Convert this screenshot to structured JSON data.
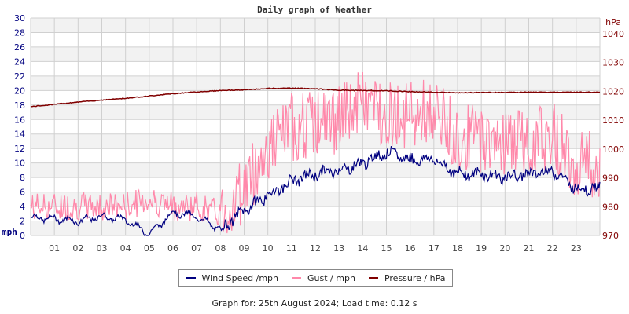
{
  "title": "Daily graph of Weather",
  "footer": "Graph for: 25th August 2024; Load time: 0.12 s",
  "colors": {
    "wind": "#000080",
    "gust": "#ff88aa",
    "pressure": "#800000",
    "left_axis": "#000080",
    "right_axis": "#800000",
    "grid": "#d0d0d0",
    "band": "#f2f2f2"
  },
  "legend": [
    {
      "label": "Wind Speed /mph",
      "color": "#000080"
    },
    {
      "label": "Gust / mph",
      "color": "#ff88aa"
    },
    {
      "label": "Pressure / hPa",
      "color": "#800000"
    }
  ],
  "chart_data": {
    "type": "line",
    "title": "Daily graph of Weather",
    "xlabel": "",
    "x_ticks": [
      "01",
      "02",
      "03",
      "04",
      "05",
      "06",
      "07",
      "08",
      "09",
      "10",
      "11",
      "12",
      "13",
      "14",
      "15",
      "16",
      "17",
      "18",
      "19",
      "20",
      "21",
      "22",
      "23"
    ],
    "left_axis": {
      "label": "mph",
      "ylim": [
        0,
        30
      ],
      "ticks": [
        0,
        2,
        4,
        6,
        8,
        10,
        12,
        14,
        16,
        18,
        20,
        22,
        24,
        26,
        28,
        30
      ]
    },
    "right_axis": {
      "label": "hPa",
      "ylim": [
        970,
        1040
      ],
      "ticks": [
        970,
        980,
        990,
        1000,
        1010,
        1020,
        1030,
        1040
      ]
    },
    "grid": true,
    "legend_position": "bottom",
    "x": [
      0,
      1,
      2,
      3,
      4,
      5,
      6,
      7,
      8,
      9,
      10,
      11,
      12,
      13,
      14,
      15,
      16,
      17,
      18,
      19,
      20,
      21,
      22,
      23,
      24
    ],
    "series": [
      {
        "name": "Wind Speed /mph",
        "axis": "left",
        "values": [
          2.5,
          2.3,
          2.0,
          2.6,
          2.2,
          0.2,
          3.2,
          2.6,
          0.8,
          3.5,
          5.5,
          7.5,
          8.5,
          9.0,
          10.0,
          11.5,
          10.5,
          10.5,
          8.5,
          8.5,
          8.0,
          8.5,
          9.0,
          6.5,
          6.5
        ]
      },
      {
        "name": "Gust / mph",
        "axis": "left",
        "values": [
          4.0,
          4.0,
          4.0,
          4.0,
          4.0,
          5.0,
          4.0,
          4.0,
          3.0,
          6.5,
          12.0,
          15.0,
          15.5,
          16.0,
          18.5,
          17.0,
          16.5,
          17.0,
          13.5,
          13.5,
          13.0,
          13.0,
          14.0,
          10.0,
          10.0
        ]
      },
      {
        "name": "Pressure / hPa",
        "axis": "right",
        "values": [
          1014.7,
          1015.5,
          1016.3,
          1017.0,
          1017.6,
          1018.4,
          1019.2,
          1019.8,
          1020.3,
          1020.5,
          1021.0,
          1021.1,
          1020.9,
          1020.4,
          1020.3,
          1020.2,
          1019.9,
          1019.7,
          1019.5,
          1019.6,
          1019.6,
          1019.7,
          1019.7,
          1019.7,
          1019.7
        ]
      }
    ]
  }
}
